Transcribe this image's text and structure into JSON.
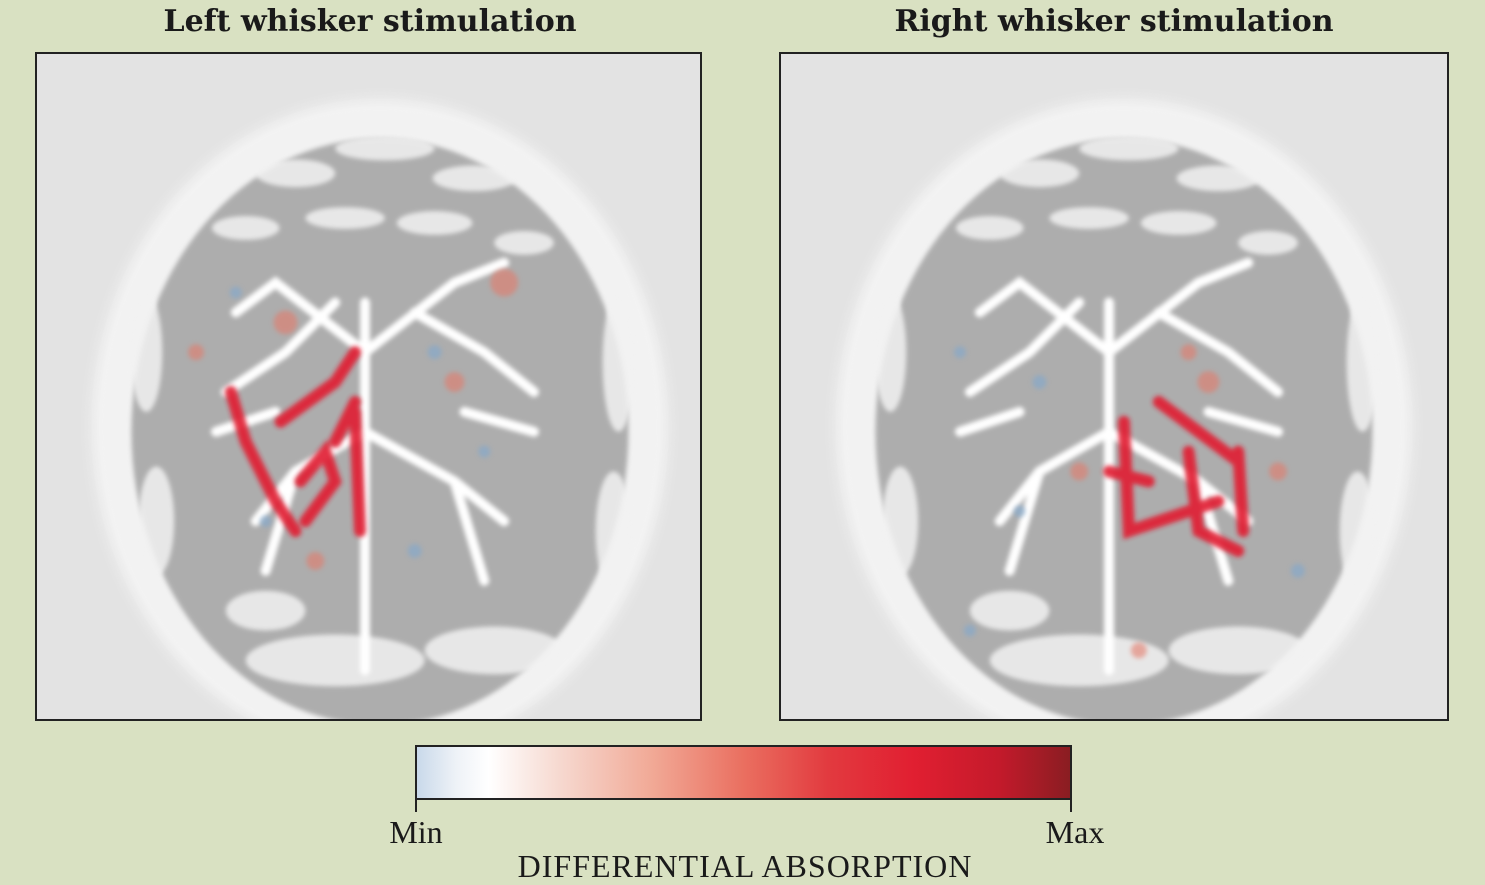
{
  "panels": [
    {
      "title": "Left whisker stimulation",
      "activation_side": "left"
    },
    {
      "title": "Right whisker stimulation",
      "activation_side": "right"
    }
  ],
  "colorbar": {
    "min_label": "Min",
    "max_label": "Max",
    "title": "DIFFERENTIAL ABSORPTION",
    "colors": [
      "#c9d9ea",
      "#ffffff",
      "#f1a996",
      "#e11f31",
      "#8a1d22"
    ]
  },
  "colors": {
    "background": "#d9e1c2",
    "panel_background": "#e3e3e3",
    "tissue_gray": "#a9a9a9",
    "vessel_white": "#ffffff",
    "activation_red": "#e11f31",
    "negative_blue": "#7fa7cf"
  }
}
